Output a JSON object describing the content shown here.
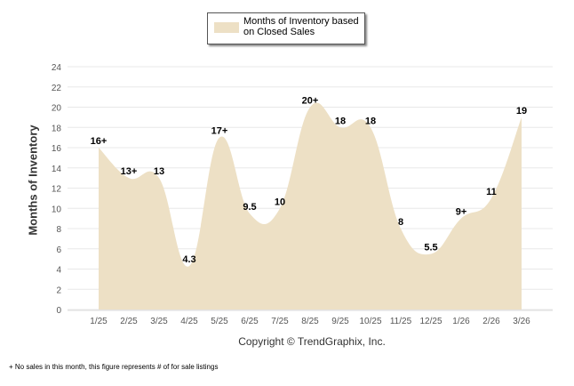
{
  "chart_data": {
    "type": "area",
    "legend": "Months of Inventory based on Closed Sales",
    "legend_position": "top-center",
    "ylabel": "Months of Inventory",
    "ylim": [
      0,
      24
    ],
    "yticks": [
      0,
      2,
      4,
      6,
      8,
      10,
      12,
      14,
      16,
      18,
      20,
      22,
      24
    ],
    "categories": [
      "1/25",
      "2/25",
      "3/25",
      "4/25",
      "5/25",
      "6/25",
      "7/25",
      "8/25",
      "9/25",
      "10/25",
      "11/25",
      "12/25",
      "1/26",
      "2/26",
      "3/26"
    ],
    "values": [
      16,
      13,
      13,
      4.3,
      17,
      9.5,
      10,
      20,
      18,
      18,
      8,
      5.5,
      9,
      11,
      19
    ],
    "data_labels": [
      "16+",
      "13+",
      "13",
      "4.3",
      "17+",
      "9.5",
      "10",
      "20+",
      "18",
      "18",
      "8",
      "5.5",
      "9+",
      "11",
      "19"
    ],
    "grid": true,
    "fill_color": "#ede0c5"
  },
  "copyright": "Copyright © TrendGraphix, Inc.",
  "footnote": "+  No sales in this month, this figure represents # of for sale listings"
}
